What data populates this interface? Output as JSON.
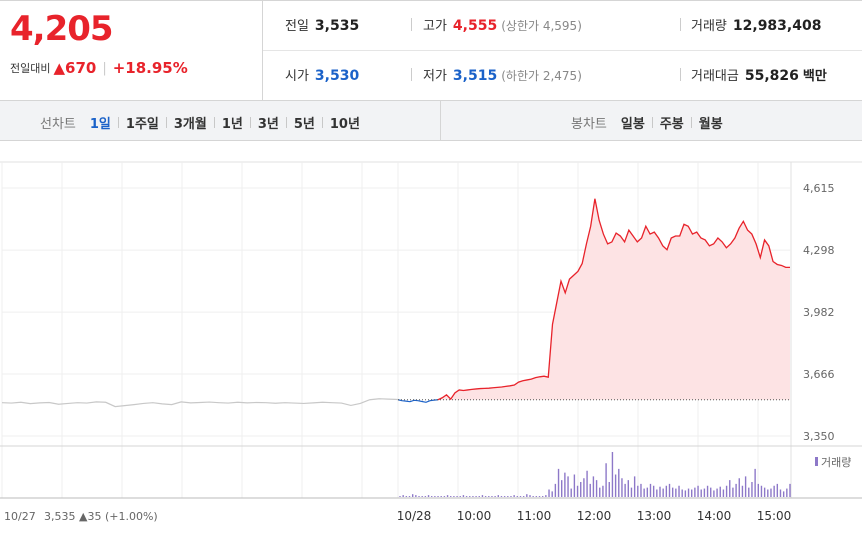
{
  "quote": {
    "price": "4,205",
    "change_label": "전일대비",
    "change_arrow": "▲",
    "change_value": "670",
    "change_pct": "+18.95%"
  },
  "info": {
    "prev_close_label": "전일",
    "prev_close": "3,535",
    "high_label": "고가",
    "high": "4,555",
    "upper_limit": "(상한가 4,595)",
    "volume_label": "거래량",
    "volume": "12,983,408",
    "open_label": "시가",
    "open": "3,530",
    "low_label": "저가",
    "low": "3,515",
    "lower_limit": "(하한가 2,475)",
    "amount_label": "거래대금",
    "amount": "55,826",
    "amount_unit": "백만"
  },
  "line_tabs": {
    "title": "선차트",
    "items": [
      "1일",
      "1주일",
      "3개월",
      "1년",
      "3년",
      "5년",
      "10년"
    ],
    "active": 0
  },
  "candle_tabs": {
    "title": "봉차트",
    "items": [
      "일봉",
      "주봉",
      "월봉"
    ]
  },
  "chart_data": {
    "type": "line",
    "y_ticks": [
      "4,615",
      "4,298",
      "3,982",
      "3,666",
      "3,350"
    ],
    "y_tick_values": [
      4615,
      4298,
      3982,
      3666,
      3350
    ],
    "ylim": [
      3350,
      4615
    ],
    "x_ticks": [
      "10/28",
      "10:00",
      "11:00",
      "12:00",
      "13:00",
      "14:00",
      "15:00"
    ],
    "prev_day_label": "10/27",
    "prev_day_summary": "3,535 ▲35 (+1.00%)",
    "reference_price": 3535,
    "volume_label": "거래량",
    "colors": {
      "up": "#e8232b",
      "down": "#1b62c9",
      "prev": "#c8c8c8",
      "fill": "#fde3e4"
    },
    "prev_day": [
      3520,
      3518,
      3522,
      3515,
      3519,
      3521,
      3512,
      3516,
      3520,
      3518,
      3524,
      3522,
      3500,
      3505,
      3510,
      3516,
      3520,
      3514,
      3510,
      3524,
      3519,
      3521,
      3523,
      3520,
      3518,
      3522,
      3519,
      3521,
      3520,
      3517,
      3520,
      3518,
      3516,
      3519,
      3522,
      3520,
      3518,
      3506,
      3516,
      3535,
      3540,
      3538,
      3536
    ],
    "today_down": [
      3535,
      3530,
      3528,
      3525,
      3532,
      3530,
      3526,
      3522,
      3530,
      3533,
      3535
    ],
    "today_up": [
      3535,
      3545,
      3560,
      3538,
      3570,
      3585,
      3582,
      3585,
      3588,
      3590,
      3592,
      3593,
      3594,
      3596,
      3598,
      3600,
      3603,
      3606,
      3610,
      3625,
      3632,
      3636,
      3640,
      3648,
      3652,
      3655,
      3650,
      3920,
      4030,
      4140,
      4080,
      4150,
      4170,
      4190,
      4230,
      4330,
      4420,
      4560,
      4450,
      4380,
      4330,
      4340,
      4385,
      4370,
      4340,
      4400,
      4370,
      4340,
      4360,
      4420,
      4380,
      4390,
      4360,
      4320,
      4300,
      4360,
      4370,
      4370,
      4430,
      4420,
      4380,
      4390,
      4360,
      4350,
      4320,
      4330,
      4360,
      4340,
      4310,
      4330,
      4360,
      4410,
      4445,
      4400,
      4380,
      4330,
      4260,
      4350,
      4320,
      4240,
      4225,
      4220,
      4210,
      4210
    ],
    "volume": [
      1,
      2,
      1,
      1,
      3,
      2,
      1,
      1,
      1,
      2,
      1,
      1,
      1,
      1,
      1,
      2,
      1,
      1,
      1,
      1,
      2,
      1,
      1,
      1,
      1,
      1,
      2,
      1,
      1,
      1,
      1,
      2,
      1,
      1,
      1,
      1,
      2,
      1,
      1,
      1,
      3,
      2,
      1,
      1,
      1,
      1,
      2,
      8,
      6,
      14,
      30,
      18,
      26,
      22,
      9,
      24,
      12,
      16,
      20,
      28,
      14,
      22,
      18,
      10,
      12,
      36,
      16,
      48,
      24,
      30,
      20,
      14,
      18,
      10,
      22,
      12,
      14,
      9,
      10,
      14,
      12,
      8,
      11,
      9,
      12,
      14,
      10,
      9,
      12,
      8,
      7,
      9,
      8,
      10,
      12,
      8,
      9,
      12,
      10,
      7,
      9,
      11,
      8,
      12,
      18,
      10,
      14,
      20,
      12,
      22,
      10,
      16,
      30,
      14,
      12,
      10,
      8,
      9,
      12,
      14,
      8,
      6,
      9,
      14
    ]
  }
}
